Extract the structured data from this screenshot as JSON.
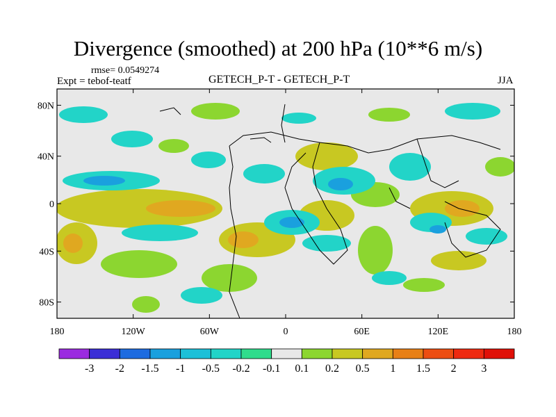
{
  "header": {
    "title": "Divergence (smoothed) at 200 hPa (10**6 m/s)",
    "rmse": "rmse= 0.0549274",
    "expt": "Expt = tebof-teatf",
    "center_label": "GETECH_P-T - GETECH_P-T",
    "season": "JJA"
  },
  "map": {
    "lon_ticks": [
      "180",
      "120W",
      "60W",
      "0",
      "60E",
      "120E",
      "180"
    ],
    "lat_ticks": [
      "80N",
      "40N",
      "0",
      "40S",
      "80S"
    ],
    "background_color": "#e8e8e8",
    "coast_color": "#000000"
  },
  "colorbar": {
    "labels": [
      "-3",
      "-2",
      "-1.5",
      "-1",
      "-0.5",
      "-0.2",
      "-0.1",
      "0.1",
      "0.2",
      "0.5",
      "1",
      "1.5",
      "2",
      "3"
    ],
    "colors": [
      "#9b2be0",
      "#3b2ed6",
      "#1d6be0",
      "#1aa0de",
      "#1cc0d8",
      "#22d4c8",
      "#2fdc8c",
      "#e8e8e8",
      "#8cd630",
      "#c8c822",
      "#e0a820",
      "#e88016",
      "#ec4e12",
      "#ee2a10",
      "#e01008"
    ]
  }
}
